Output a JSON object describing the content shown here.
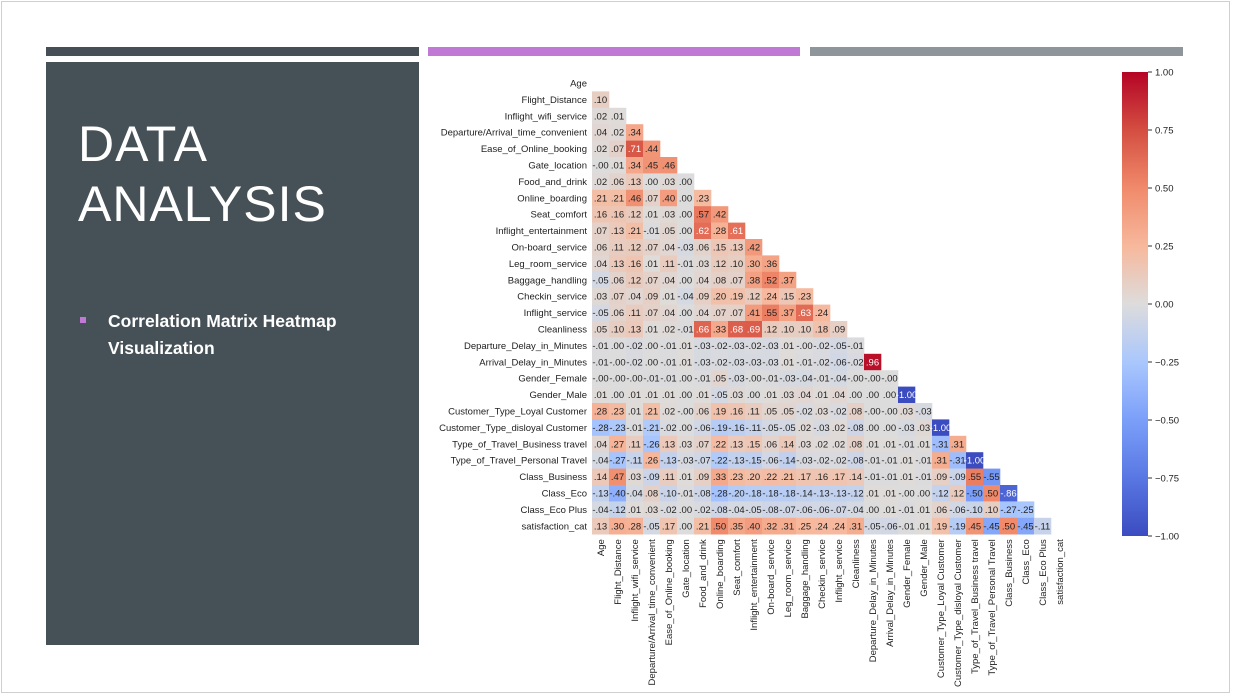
{
  "slide": {
    "title_line1": "DATA",
    "title_line2": "ANALYSIS",
    "bullet": "Correlation Matrix Heatmap Visualization"
  },
  "colors": {
    "panel": "#465157",
    "accent": "#c07ad6",
    "bar_dark": "#454f55",
    "bar_gray": "#8f969b",
    "cmap_neg": "#3b4cc0",
    "cmap_mid": "#dddddd",
    "cmap_pos": "#b40426"
  },
  "chart_data": {
    "type": "heatmap",
    "variant": "lower-triangle correlation matrix",
    "colormap": "coolwarm",
    "colorbar": {
      "range": [
        -1.0,
        1.0
      ],
      "ticks": [
        1.0,
        0.75,
        0.5,
        0.25,
        0.0,
        -0.25,
        -0.5,
        -0.75,
        -1.0
      ],
      "tick_labels": [
        "1.00",
        "0.75",
        "0.50",
        "0.25",
        "0.00",
        "−0.25",
        "−0.50",
        "−0.75",
        "−1.00"
      ]
    },
    "labels": [
      "Age",
      "Flight_Distance",
      "Inflight_wifi_service",
      "Departure/Arrival_time_convenient",
      "Ease_of_Online_booking",
      "Gate_location",
      "Food_and_drink",
      "Online_boarding",
      "Seat_comfort",
      "Inflight_entertainment",
      "On-board_service",
      "Leg_room_service",
      "Baggage_handling",
      "Checkin_service",
      "Inflight_service",
      "Cleanliness",
      "Departure_Delay_in_Minutes",
      "Arrival_Delay_in_Minutes",
      "Gender_Female",
      "Gender_Male",
      "Customer_Type_Loyal Customer",
      "Customer_Type_disloyal Customer",
      "Type_of_Travel_Business travel",
      "Type_of_Travel_Personal Travel",
      "Class_Business",
      "Class_Eco",
      "Class_Eco Plus",
      "satisfaction_cat"
    ],
    "values": [
      [],
      [
        0.1
      ],
      [
        0.02,
        0.01
      ],
      [
        0.04,
        0.02,
        0.34
      ],
      [
        0.02,
        0.07,
        0.71,
        0.44
      ],
      [
        -0.0,
        0.01,
        0.34,
        0.45,
        0.46
      ],
      [
        0.02,
        0.06,
        0.13,
        0.0,
        0.03,
        0.0
      ],
      [
        0.21,
        0.21,
        0.46,
        0.07,
        0.4,
        0.0,
        0.23
      ],
      [
        0.16,
        0.16,
        0.12,
        0.01,
        0.03,
        0.0,
        0.57,
        0.42
      ],
      [
        0.07,
        0.13,
        0.21,
        -0.01,
        0.05,
        0.0,
        0.62,
        0.28,
        0.61
      ],
      [
        0.06,
        0.11,
        0.12,
        0.07,
        0.04,
        -0.03,
        0.06,
        0.15,
        0.13,
        0.42
      ],
      [
        0.04,
        0.13,
        0.16,
        0.01,
        0.11,
        -0.01,
        0.03,
        0.12,
        0.1,
        0.3,
        0.36
      ],
      [
        -0.05,
        0.06,
        0.12,
        0.07,
        0.04,
        0.0,
        0.04,
        0.08,
        0.07,
        0.38,
        0.52,
        0.37
      ],
      [
        0.03,
        0.07,
        0.04,
        0.09,
        0.01,
        -0.04,
        0.09,
        0.2,
        0.19,
        0.12,
        0.24,
        0.15,
        0.23
      ],
      [
        -0.05,
        0.06,
        0.11,
        0.07,
        0.04,
        0.0,
        0.04,
        0.07,
        0.07,
        0.41,
        0.55,
        0.37,
        0.63,
        0.24
      ],
      [
        0.05,
        0.1,
        0.13,
        0.01,
        0.02,
        -0.01,
        0.66,
        0.33,
        0.68,
        0.69,
        0.12,
        0.1,
        0.1,
        0.18,
        0.09
      ],
      [
        -0.01,
        0.0,
        -0.02,
        0.0,
        -0.01,
        0.01,
        -0.03,
        -0.02,
        -0.03,
        -0.02,
        -0.03,
        0.01,
        -0.0,
        -0.02,
        -0.05,
        -0.01
      ],
      [
        -0.01,
        -0.0,
        -0.02,
        0.0,
        -0.01,
        0.01,
        -0.03,
        -0.02,
        -0.03,
        -0.03,
        -0.03,
        0.01,
        -0.01,
        -0.02,
        -0.06,
        -0.02,
        0.96
      ],
      [
        -0.0,
        -0.0,
        -0.0,
        -0.01,
        -0.01,
        0.0,
        -0.01,
        0.05,
        -0.03,
        -0.0,
        -0.01,
        -0.03,
        -0.04,
        -0.01,
        -0.04,
        -0.0,
        -0.0,
        -0.0
      ],
      [
        0.01,
        0.0,
        0.01,
        0.01,
        0.01,
        0.0,
        0.01,
        -0.05,
        0.03,
        0.0,
        0.01,
        0.03,
        0.04,
        0.01,
        0.04,
        0.0,
        0.0,
        0.0,
        -1.0
      ],
      [
        0.28,
        0.23,
        0.01,
        0.21,
        0.02,
        -0.0,
        0.06,
        0.19,
        0.16,
        0.11,
        0.05,
        0.05,
        -0.02,
        0.03,
        -0.02,
        0.08,
        -0.0,
        -0.0,
        0.03,
        -0.03
      ],
      [
        -0.28,
        -0.23,
        -0.01,
        -0.21,
        -0.02,
        0.0,
        -0.06,
        -0.19,
        -0.16,
        -0.11,
        -0.05,
        -0.05,
        0.02,
        -0.03,
        0.02,
        -0.08,
        0.0,
        0.0,
        -0.03,
        0.03,
        -1.0
      ],
      [
        0.04,
        0.27,
        0.11,
        -0.26,
        0.13,
        0.03,
        0.07,
        0.22,
        0.13,
        0.15,
        0.06,
        0.14,
        0.03,
        0.02,
        0.02,
        0.08,
        0.01,
        0.01,
        -0.01,
        0.01,
        -0.31,
        0.31
      ],
      [
        -0.04,
        -0.27,
        -0.11,
        0.26,
        -0.13,
        -0.03,
        -0.07,
        -0.22,
        -0.13,
        -0.15,
        -0.06,
        -0.14,
        -0.03,
        -0.02,
        -0.02,
        -0.08,
        -0.01,
        -0.01,
        0.01,
        -0.01,
        0.31,
        -0.31,
        -1.0
      ],
      [
        0.14,
        0.47,
        0.03,
        -0.09,
        0.11,
        0.01,
        0.09,
        0.33,
        0.23,
        0.2,
        0.22,
        0.21,
        0.17,
        0.16,
        0.17,
        0.14,
        -0.01,
        -0.01,
        0.01,
        -0.01,
        0.09,
        -0.09,
        0.55,
        -0.55
      ],
      [
        -0.13,
        -0.4,
        -0.04,
        0.08,
        -0.1,
        -0.01,
        -0.08,
        -0.28,
        -0.2,
        -0.18,
        -0.18,
        -0.18,
        -0.14,
        -0.13,
        -0.13,
        -0.12,
        0.01,
        0.01,
        -0.0,
        0.0,
        -0.12,
        0.12,
        -0.5,
        0.5,
        -0.86
      ],
      [
        -0.04,
        -0.12,
        0.01,
        0.03,
        -0.02,
        0.0,
        -0.02,
        -0.08,
        -0.04,
        -0.05,
        -0.08,
        -0.07,
        -0.06,
        -0.06,
        -0.07,
        -0.04,
        0.0,
        0.01,
        -0.01,
        0.01,
        0.06,
        -0.06,
        -0.1,
        0.1,
        -0.27,
        -0.25
      ],
      [
        0.13,
        0.3,
        0.28,
        -0.05,
        0.17,
        0.0,
        0.21,
        0.5,
        0.35,
        0.4,
        0.32,
        0.31,
        0.25,
        0.24,
        0.24,
        0.31,
        -0.05,
        -0.06,
        -0.01,
        0.01,
        0.19,
        -0.19,
        0.45,
        -0.45,
        0.5,
        -0.45,
        -0.11
      ]
    ]
  }
}
